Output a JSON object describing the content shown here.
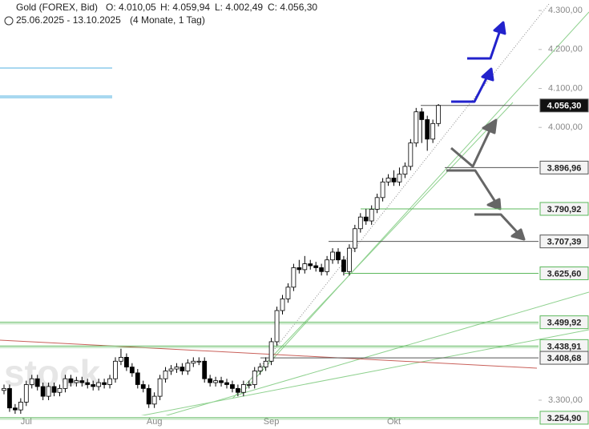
{
  "header": {
    "title": "Gold (FOREX, Bid)",
    "open": "O: 4.010,05",
    "high": "H: 4.059,94",
    "low": "L: 4.002,49",
    "close": "C: 4.056,30",
    "range": "25.06.2025 - 13.10.2025",
    "period": "(4 Monate, 1 Tag)"
  },
  "chart_data": {
    "type": "candlestick",
    "watermark": "stock",
    "categories": [
      null,
      null,
      null,
      null,
      "Jul",
      null,
      null,
      null,
      null,
      null,
      null,
      null,
      null,
      null,
      null,
      null,
      null,
      null,
      null,
      null,
      null,
      null,
      null,
      null,
      null,
      null,
      null,
      "Aug",
      null,
      null,
      null,
      null,
      null,
      null,
      null,
      null,
      null,
      null,
      null,
      null,
      null,
      null,
      null,
      null,
      null,
      null,
      null,
      null,
      "Sep",
      null,
      null,
      null,
      null,
      null,
      null,
      null,
      null,
      null,
      null,
      null,
      null,
      null,
      null,
      null,
      null,
      null,
      null,
      null,
      null,
      null,
      "Okt",
      null,
      null,
      null,
      null,
      null,
      null,
      null,
      null
    ],
    "open": [
      3325,
      3330,
      3280,
      3275,
      3295,
      3340,
      3355,
      3335,
      3310,
      3335,
      3320,
      3330,
      3355,
      3345,
      3350,
      3345,
      3340,
      3335,
      3345,
      3340,
      3355,
      3400,
      3410,
      3385,
      3370,
      3340,
      3330,
      3290,
      3310,
      3355,
      3375,
      3380,
      3385,
      3375,
      3395,
      3400,
      3400,
      3355,
      3345,
      3350,
      3345,
      3340,
      3330,
      3320,
      3340,
      3340,
      3375,
      3385,
      3400,
      3450,
      3530,
      3560,
      3590,
      3640,
      3635,
      3650,
      3645,
      3640,
      3630,
      3660,
      3680,
      3660,
      3630,
      3690,
      3740,
      3770,
      3760,
      3790,
      3820,
      3860,
      3870,
      3860,
      3880,
      3900,
      3960,
      4040,
      4020,
      3970,
      4010.05
    ],
    "high": [
      3340,
      3340,
      3290,
      3305,
      3350,
      3365,
      3365,
      3345,
      3345,
      3345,
      3340,
      3365,
      3365,
      3360,
      3360,
      3355,
      3350,
      3355,
      3355,
      3365,
      3410,
      3432,
      3420,
      3395,
      3380,
      3350,
      3340,
      3320,
      3365,
      3385,
      3390,
      3395,
      3395,
      3405,
      3410,
      3410,
      3410,
      3365,
      3360,
      3360,
      3355,
      3350,
      3340,
      3350,
      3350,
      3385,
      3395,
      3410,
      3460,
      3540,
      3570,
      3600,
      3650,
      3660,
      3670,
      3660,
      3655,
      3650,
      3670,
      3690,
      3690,
      3670,
      3700,
      3750,
      3780,
      3791,
      3800,
      3830,
      3870,
      3880,
      3890,
      3897,
      3910,
      3970,
      4050,
      4050,
      4030,
      4020,
      4059.94
    ],
    "low": [
      3315,
      3270,
      3265,
      3265,
      3285,
      3330,
      3325,
      3300,
      3300,
      3310,
      3310,
      3320,
      3335,
      3335,
      3335,
      3330,
      3325,
      3325,
      3330,
      3330,
      3345,
      3390,
      3375,
      3360,
      3330,
      3320,
      3280,
      3280,
      3300,
      3345,
      3365,
      3370,
      3365,
      3365,
      3385,
      3390,
      3345,
      3335,
      3335,
      3335,
      3330,
      3320,
      3310,
      3310,
      3330,
      3330,
      3365,
      3375,
      3390,
      3440,
      3520,
      3550,
      3580,
      3625,
      3625,
      3635,
      3630,
      3620,
      3620,
      3650,
      3650,
      3620,
      3620,
      3680,
      3730,
      3750,
      3750,
      3780,
      3810,
      3850,
      3850,
      3850,
      3870,
      3890,
      3950,
      3960,
      3940,
      3960,
      4002.49
    ],
    "close": [
      3330,
      3280,
      3275,
      3295,
      3340,
      3355,
      3335,
      3310,
      3335,
      3320,
      3330,
      3355,
      3345,
      3350,
      3345,
      3340,
      3335,
      3345,
      3340,
      3355,
      3400,
      3410,
      3385,
      3370,
      3340,
      3330,
      3290,
      3310,
      3355,
      3375,
      3380,
      3385,
      3375,
      3395,
      3400,
      3400,
      3355,
      3345,
      3350,
      3345,
      3340,
      3330,
      3320,
      3340,
      3340,
      3375,
      3385,
      3400,
      3450,
      3530,
      3560,
      3590,
      3640,
      3635,
      3650,
      3645,
      3640,
      3630,
      3660,
      3680,
      3660,
      3630,
      3690,
      3740,
      3770,
      3760,
      3790,
      3820,
      3860,
      3870,
      3860,
      3880,
      3900,
      3960,
      4040,
      4020,
      3970,
      4010,
      4056.3
    ],
    "ylim": [
      3226,
      4327
    ],
    "yticks": [
      {
        "value": 4300,
        "label": "4.300,00"
      },
      {
        "value": 4200,
        "label": "4.200,00"
      },
      {
        "value": 4100,
        "label": "4.100,00"
      },
      {
        "value": 4000,
        "label": "4.000,00"
      },
      {
        "value": 3300,
        "label": "3.300,00"
      }
    ],
    "levels": [
      {
        "value": 4056.3,
        "label": "4.056,30",
        "color": "#555555"
      },
      {
        "value": 3896.96,
        "label": "3.896,96",
        "color": "#555555"
      },
      {
        "value": 3790.92,
        "label": "3.790,92",
        "color": "#5cb85c"
      },
      {
        "value": 3707.39,
        "label": "3.707,39",
        "color": "#555555"
      },
      {
        "value": 3625.6,
        "label": "3.625,60",
        "color": "#5cb85c"
      },
      {
        "value": 3499.92,
        "label": "3.499,92",
        "color": "#5cb85c"
      },
      {
        "value": 3438.91,
        "label": "3.438,91",
        "color": "#5cb85c"
      },
      {
        "value": 3408.68,
        "label": "3.408,68",
        "color": "#555555"
      },
      {
        "value": 3254.9,
        "label": "3.254,90",
        "color": "#5cb85c"
      }
    ]
  }
}
